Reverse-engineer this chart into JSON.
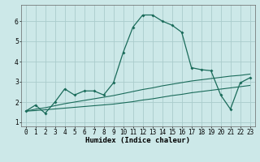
{
  "xlabel": "Humidex (Indice chaleur)",
  "bg_color": "#cce8e8",
  "grid_color": "#aacccc",
  "line_color": "#1a6b5a",
  "xlim_min": -0.5,
  "xlim_max": 23.5,
  "ylim_min": 0.8,
  "ylim_max": 6.8,
  "yticks": [
    1,
    2,
    3,
    4,
    5,
    6
  ],
  "xticks": [
    0,
    1,
    2,
    3,
    4,
    5,
    6,
    7,
    8,
    9,
    10,
    11,
    12,
    13,
    14,
    15,
    16,
    17,
    18,
    19,
    20,
    21,
    22,
    23
  ],
  "series1_x": [
    0,
    1,
    2,
    3,
    4,
    5,
    6,
    7,
    8,
    9,
    10,
    11,
    12,
    13,
    14,
    15,
    16,
    17,
    18,
    19,
    20,
    21,
    22,
    23
  ],
  "series1_y": [
    1.55,
    1.85,
    1.45,
    2.0,
    2.65,
    2.35,
    2.55,
    2.55,
    2.35,
    2.95,
    4.45,
    5.7,
    6.3,
    6.3,
    6.0,
    5.8,
    5.45,
    3.7,
    3.6,
    3.55,
    2.35,
    1.65,
    2.95,
    3.2
  ],
  "series2_x": [
    0,
    1,
    2,
    3,
    4,
    5,
    6,
    7,
    8,
    9,
    10,
    11,
    12,
    13,
    14,
    15,
    16,
    17,
    18,
    19,
    20,
    21,
    22,
    23
  ],
  "series2_y": [
    1.55,
    1.65,
    1.72,
    1.82,
    1.92,
    2.0,
    2.08,
    2.16,
    2.24,
    2.32,
    2.42,
    2.52,
    2.62,
    2.7,
    2.8,
    2.88,
    2.96,
    3.04,
    3.1,
    3.16,
    3.22,
    3.28,
    3.32,
    3.38
  ],
  "series3_x": [
    0,
    1,
    2,
    3,
    4,
    5,
    6,
    7,
    8,
    9,
    10,
    11,
    12,
    13,
    14,
    15,
    16,
    17,
    18,
    19,
    20,
    21,
    22,
    23
  ],
  "series3_y": [
    1.55,
    1.58,
    1.62,
    1.66,
    1.7,
    1.74,
    1.78,
    1.82,
    1.86,
    1.9,
    1.96,
    2.02,
    2.1,
    2.16,
    2.24,
    2.32,
    2.38,
    2.46,
    2.52,
    2.58,
    2.64,
    2.7,
    2.76,
    2.82
  ],
  "label_fontsize": 6.5,
  "tick_fontsize": 5.5
}
